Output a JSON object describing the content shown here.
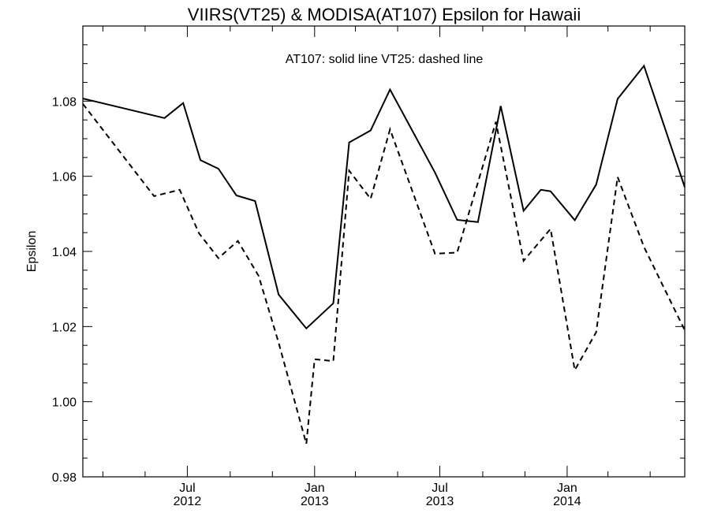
{
  "chart_data": {
    "type": "line",
    "title": "VIIRS(VT25) & MODISA(AT107)  Epsilon for Hawaii",
    "annotation": "AT107: solid line   VT25: dashed line",
    "ylabel": "Epsilon",
    "xlabel": "",
    "ylim": [
      0.98,
      1.1
    ],
    "xlim": [
      "2012-02-01",
      "2014-06-20"
    ],
    "y_ticks": [
      {
        "value": 0.98,
        "label": "0.98"
      },
      {
        "value": 1.0,
        "label": "1.00"
      },
      {
        "value": 1.02,
        "label": "1.02"
      },
      {
        "value": 1.04,
        "label": "1.04"
      },
      {
        "value": 1.06,
        "label": "1.06"
      },
      {
        "value": 1.08,
        "label": "1.08"
      }
    ],
    "y_minor_step": 0.005,
    "x_ticks": [
      {
        "date": "2012-07-01",
        "label_top": "Jul",
        "label_bottom": "2012"
      },
      {
        "date": "2013-01-01",
        "label_top": "Jan",
        "label_bottom": "2013"
      },
      {
        "date": "2013-07-01",
        "label_top": "Jul",
        "label_bottom": "2013"
      },
      {
        "date": "2014-01-01",
        "label_top": "Jan",
        "label_bottom": "2014"
      }
    ],
    "x_minor_ticks": [
      "2012-03-01",
      "2012-05-01",
      "2012-09-01",
      "2012-11-01",
      "2013-03-01",
      "2013-05-01",
      "2013-09-01",
      "2013-11-01",
      "2014-03-01",
      "2014-05-01"
    ],
    "grid": false,
    "series": [
      {
        "name": "AT107",
        "style": "solid",
        "color": "#000000",
        "points": [
          [
            "2012-02-01",
            1.0807
          ],
          [
            "2012-05-29",
            1.0755
          ],
          [
            "2012-06-25",
            1.0795
          ],
          [
            "2012-07-20",
            1.0643
          ],
          [
            "2012-08-15",
            1.062
          ],
          [
            "2012-09-10",
            1.0549
          ],
          [
            "2012-10-07",
            1.0534
          ],
          [
            "2012-11-10",
            1.0285
          ],
          [
            "2012-12-20",
            1.0195
          ],
          [
            "2013-01-28",
            1.0262
          ],
          [
            "2013-02-20",
            1.069
          ],
          [
            "2013-03-23",
            1.0722
          ],
          [
            "2013-04-20",
            1.0831
          ],
          [
            "2013-06-24",
            1.061
          ],
          [
            "2013-07-26",
            1.0484
          ],
          [
            "2013-08-25",
            1.0478
          ],
          [
            "2013-09-27",
            1.0787
          ],
          [
            "2013-10-30",
            1.0508
          ],
          [
            "2013-11-24",
            1.0564
          ],
          [
            "2013-12-08",
            1.056
          ],
          [
            "2014-01-12",
            1.0483
          ],
          [
            "2014-02-12",
            1.0578
          ],
          [
            "2014-03-15",
            1.0806
          ],
          [
            "2014-04-22",
            1.0894
          ],
          [
            "2014-06-20",
            1.0571
          ]
        ]
      },
      {
        "name": "VT25",
        "style": "dashed",
        "color": "#000000",
        "points": [
          [
            "2012-02-01",
            1.0793
          ],
          [
            "2012-05-14",
            1.0547
          ],
          [
            "2012-06-20",
            1.0564
          ],
          [
            "2012-07-18",
            1.0448
          ],
          [
            "2012-08-15",
            1.0382
          ],
          [
            "2012-09-12",
            1.0428
          ],
          [
            "2012-10-12",
            1.0335
          ],
          [
            "2012-11-10",
            1.0157
          ],
          [
            "2012-12-20",
            0.9888
          ],
          [
            "2013-01-01",
            1.0113
          ],
          [
            "2013-01-28",
            1.0108
          ],
          [
            "2013-02-20",
            1.0615
          ],
          [
            "2013-03-23",
            1.054
          ],
          [
            "2013-04-20",
            1.0725
          ],
          [
            "2013-06-24",
            1.0394
          ],
          [
            "2013-07-26",
            1.0397
          ],
          [
            "2013-09-20",
            1.0745
          ],
          [
            "2013-10-30",
            1.0375
          ],
          [
            "2013-12-08",
            1.046
          ],
          [
            "2014-01-12",
            1.0084
          ],
          [
            "2014-02-12",
            1.0185
          ],
          [
            "2014-03-15",
            1.0598
          ],
          [
            "2014-04-22",
            1.0412
          ],
          [
            "2014-06-20",
            1.019
          ]
        ]
      }
    ]
  }
}
